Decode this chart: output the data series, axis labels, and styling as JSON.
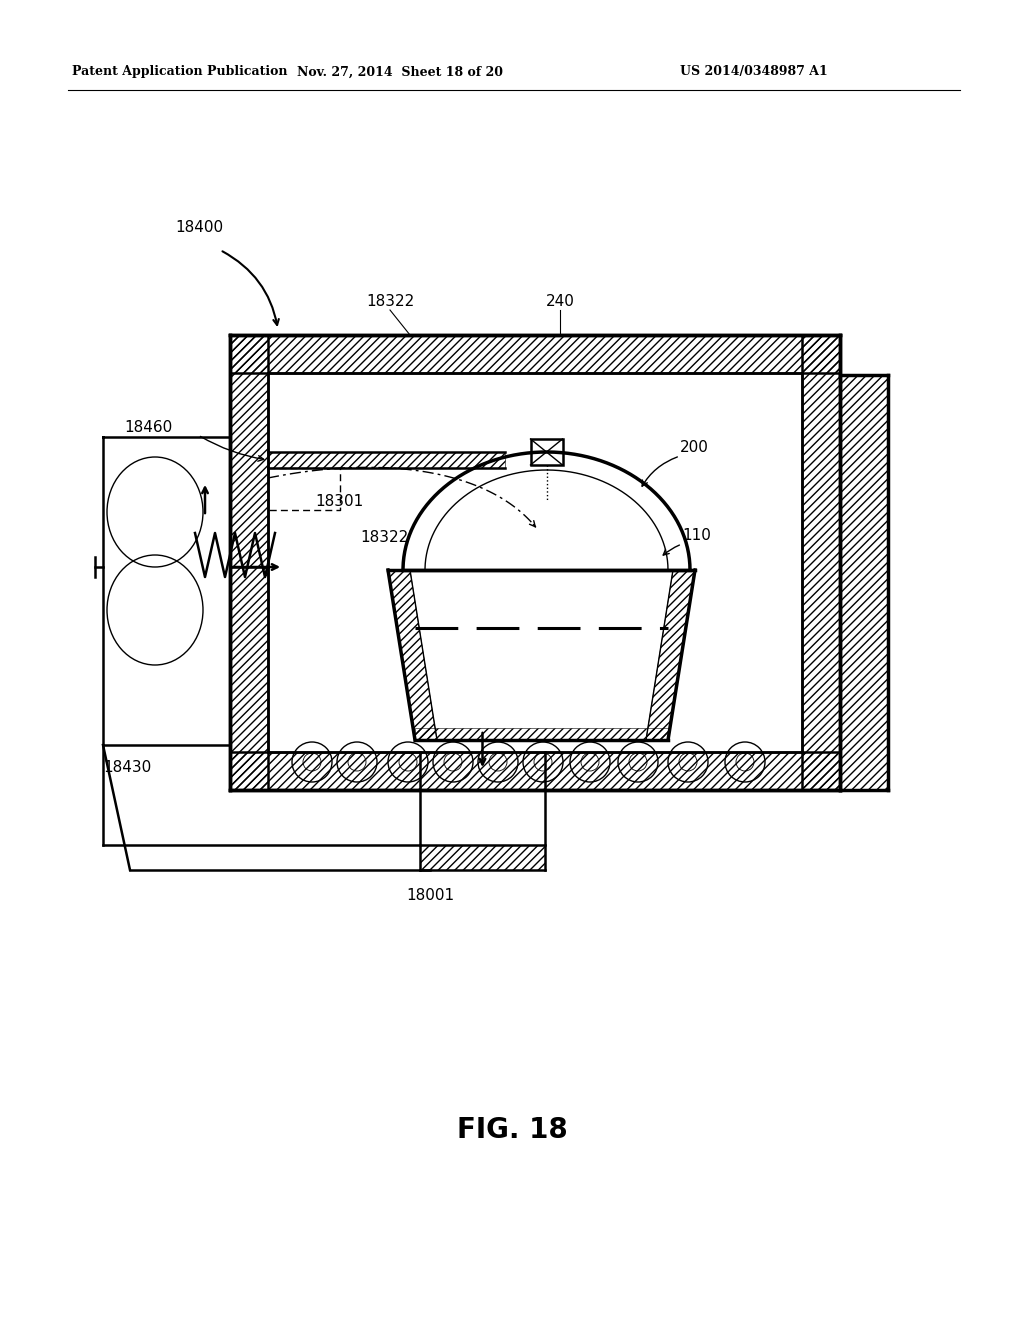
{
  "header_left": "Patent Application Publication",
  "header_mid": "Nov. 27, 2014  Sheet 18 of 20",
  "header_right": "US 2014/0348987 A1",
  "fig_caption": "FIG. 18",
  "bg": "#ffffff",
  "black": "#000000"
}
